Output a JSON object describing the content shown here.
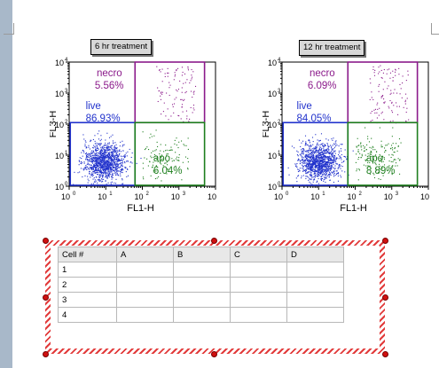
{
  "plots": [
    {
      "title": "6 hr treatment",
      "x_axis_label": "FL1-H",
      "y_axis_label": "FL3-H",
      "x_ticks": [
        "10",
        "10",
        "10",
        "10",
        "10"
      ],
      "x_tick_exponents": [
        "0",
        "1",
        "2",
        "3",
        "4"
      ],
      "y_ticks": [
        "10",
        "10",
        "10",
        "10",
        "10"
      ],
      "y_tick_exponents": [
        "0",
        "1",
        "2",
        "3",
        "4"
      ],
      "gates": [
        {
          "name": "necro",
          "value": "5.56%",
          "color": "#8b1a8b"
        },
        {
          "name": "live",
          "value": "86.93%",
          "color": "#2233cc"
        },
        {
          "name": "apo",
          "value": "6.04%",
          "color": "#1e7f1e"
        }
      ]
    },
    {
      "title": "12 hr treatment",
      "x_axis_label": "FL1-H",
      "y_axis_label": "FL3-H",
      "x_ticks": [
        "10",
        "10",
        "10",
        "10",
        "10"
      ],
      "x_tick_exponents": [
        "0",
        "1",
        "2",
        "3",
        "4"
      ],
      "y_ticks": [
        "10",
        "10",
        "10",
        "10",
        "10"
      ],
      "y_tick_exponents": [
        "0",
        "1",
        "2",
        "3",
        "4"
      ],
      "gates": [
        {
          "name": "necro",
          "value": "6.09%",
          "color": "#8b1a8b"
        },
        {
          "name": "live",
          "value": "84.05%",
          "color": "#2233cc"
        },
        {
          "name": "apo",
          "value": "8.89%",
          "color": "#1e7f1e"
        }
      ]
    }
  ],
  "table": {
    "headers": [
      "Cell #",
      "A",
      "B",
      "C",
      "D"
    ],
    "rows": [
      [
        "1",
        "",
        "",
        "",
        ""
      ],
      [
        "2",
        "",
        "",
        "",
        ""
      ],
      [
        "3",
        "",
        "",
        "",
        ""
      ],
      [
        "4",
        "",
        "",
        "",
        ""
      ]
    ]
  }
}
